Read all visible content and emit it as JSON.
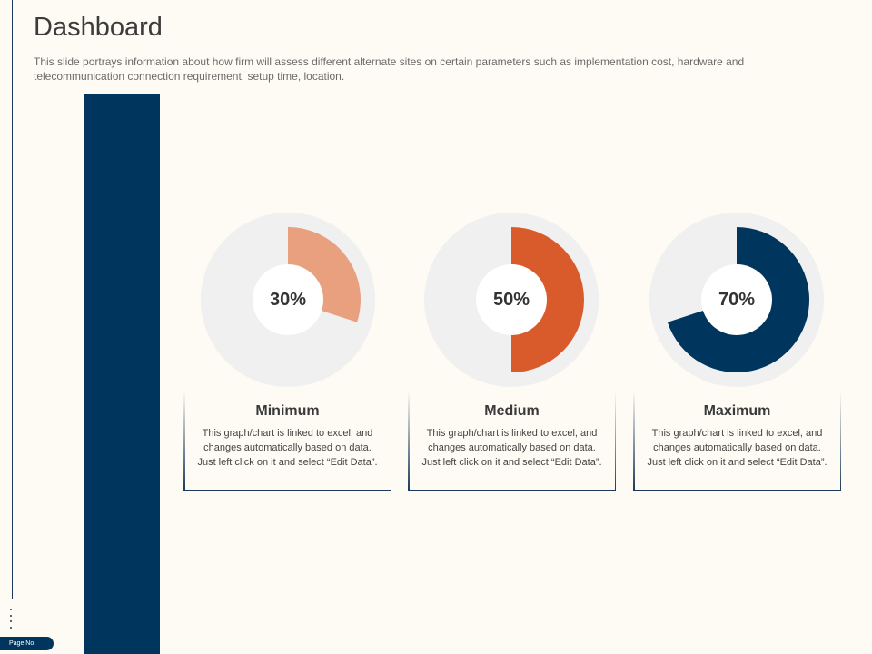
{
  "header": {
    "title": "Dashboard",
    "subtitle": "This slide portrays information about how firm will assess different alternate sites on certain parameters such as implementation cost, hardware and telecommunication connection requirement, setup time, location."
  },
  "footer": {
    "page_no": "Page No."
  },
  "colors": {
    "accent_navy": "#00355e",
    "minimum": "#e8a07f",
    "medium": "#d95b2b",
    "maximum": "#00355e",
    "donut_track": "#f0f0f0"
  },
  "chart_data": {
    "type": "pie",
    "charts": [
      {
        "label": "30%",
        "value": 30,
        "category": "Minimum",
        "color": "#e8a07f"
      },
      {
        "label": "50%",
        "value": 50,
        "category": "Medium",
        "color": "#d95b2b"
      },
      {
        "label": "70%",
        "value": 70,
        "category": "Maximum",
        "color": "#00355e"
      }
    ]
  },
  "cards": [
    {
      "title": "Minimum",
      "desc": "This graph/chart is linked to excel, and changes automatically based on data. Just left click on it and select “Edit Data”."
    },
    {
      "title": "Medium",
      "desc": "This graph/chart is linked to excel, and changes automatically based on data. Just left click on it and select “Edit Data”."
    },
    {
      "title": "Maximum",
      "desc": "This graph/chart is linked to excel, and changes automatically based on data. Just left click on it and select “Edit Data”."
    }
  ]
}
